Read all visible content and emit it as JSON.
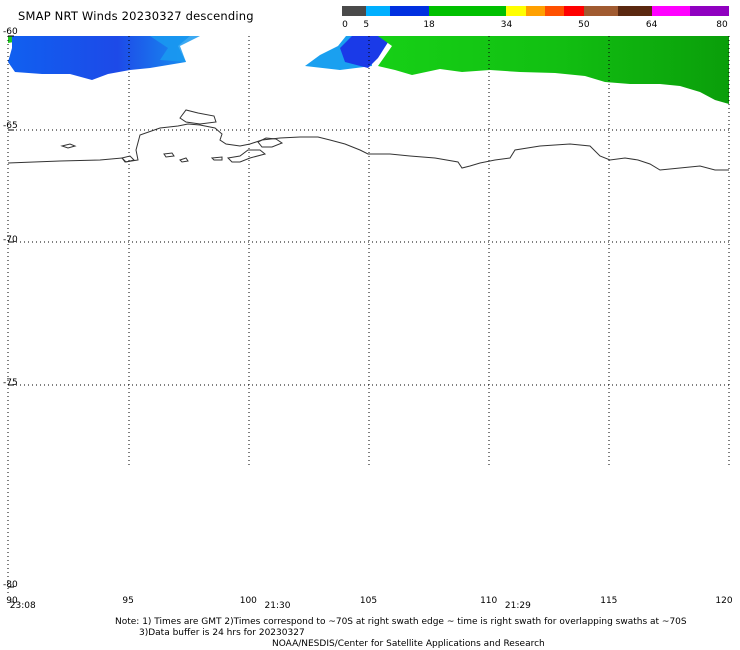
{
  "title": "SMAP NRT Winds  20230327 descending",
  "colorbar": {
    "labels": [
      "0",
      "5",
      "18",
      "34",
      "50",
      "64",
      "80"
    ],
    "segments": [
      {
        "from": 0,
        "to": 5,
        "color": "#4a4a4a"
      },
      {
        "from": 5,
        "to": 10,
        "color": "#00b0ff"
      },
      {
        "from": 10,
        "to": 18,
        "color": "#0030e0"
      },
      {
        "from": 18,
        "to": 34,
        "color": "#00c000"
      },
      {
        "from": 34,
        "to": 38,
        "color": "#ffff00"
      },
      {
        "from": 38,
        "to": 42,
        "color": "#ffa000"
      },
      {
        "from": 42,
        "to": 46,
        "color": "#ff5000"
      },
      {
        "from": 46,
        "to": 50,
        "color": "#ff0000"
      },
      {
        "from": 50,
        "to": 57,
        "color": "#a05a30"
      },
      {
        "from": 57,
        "to": 64,
        "color": "#5a2810"
      },
      {
        "from": 64,
        "to": 72,
        "color": "#ff00ff"
      },
      {
        "from": 72,
        "to": 80,
        "color": "#9000c0"
      }
    ]
  },
  "axes": {
    "lat_labels": [
      "-60",
      "-65",
      "-70",
      "-75",
      "-80"
    ],
    "lon_labels": [
      "90",
      "95",
      "100",
      "105",
      "110",
      "115",
      "120"
    ],
    "lon_range": [
      90,
      120
    ],
    "lat_range": [
      -80,
      -60
    ]
  },
  "swath_times": [
    {
      "text": "23:08",
      "lon": 90.2
    },
    {
      "text": "21:30",
      "lon": 100.8
    },
    {
      "text": "21:29",
      "lon": 110.8
    }
  ],
  "notes": {
    "line1": "Note: 1) Times are GMT 2)Times correspond to ~70S at right swath edge ~ time is right swath for overlapping swaths at ~70S",
    "line2": "3)Data buffer is 24 hrs for 20230327",
    "line3": "NOAA/NESDIS/Center for Satellite Applications and Research"
  },
  "colors": {
    "grid": "#000000",
    "coast": "#333333",
    "wind_blue": "#1a4ee8",
    "wind_cyan": "#1aa0f0",
    "wind_green": "#11c411",
    "wind_dark_green": "#0a9a0a"
  }
}
